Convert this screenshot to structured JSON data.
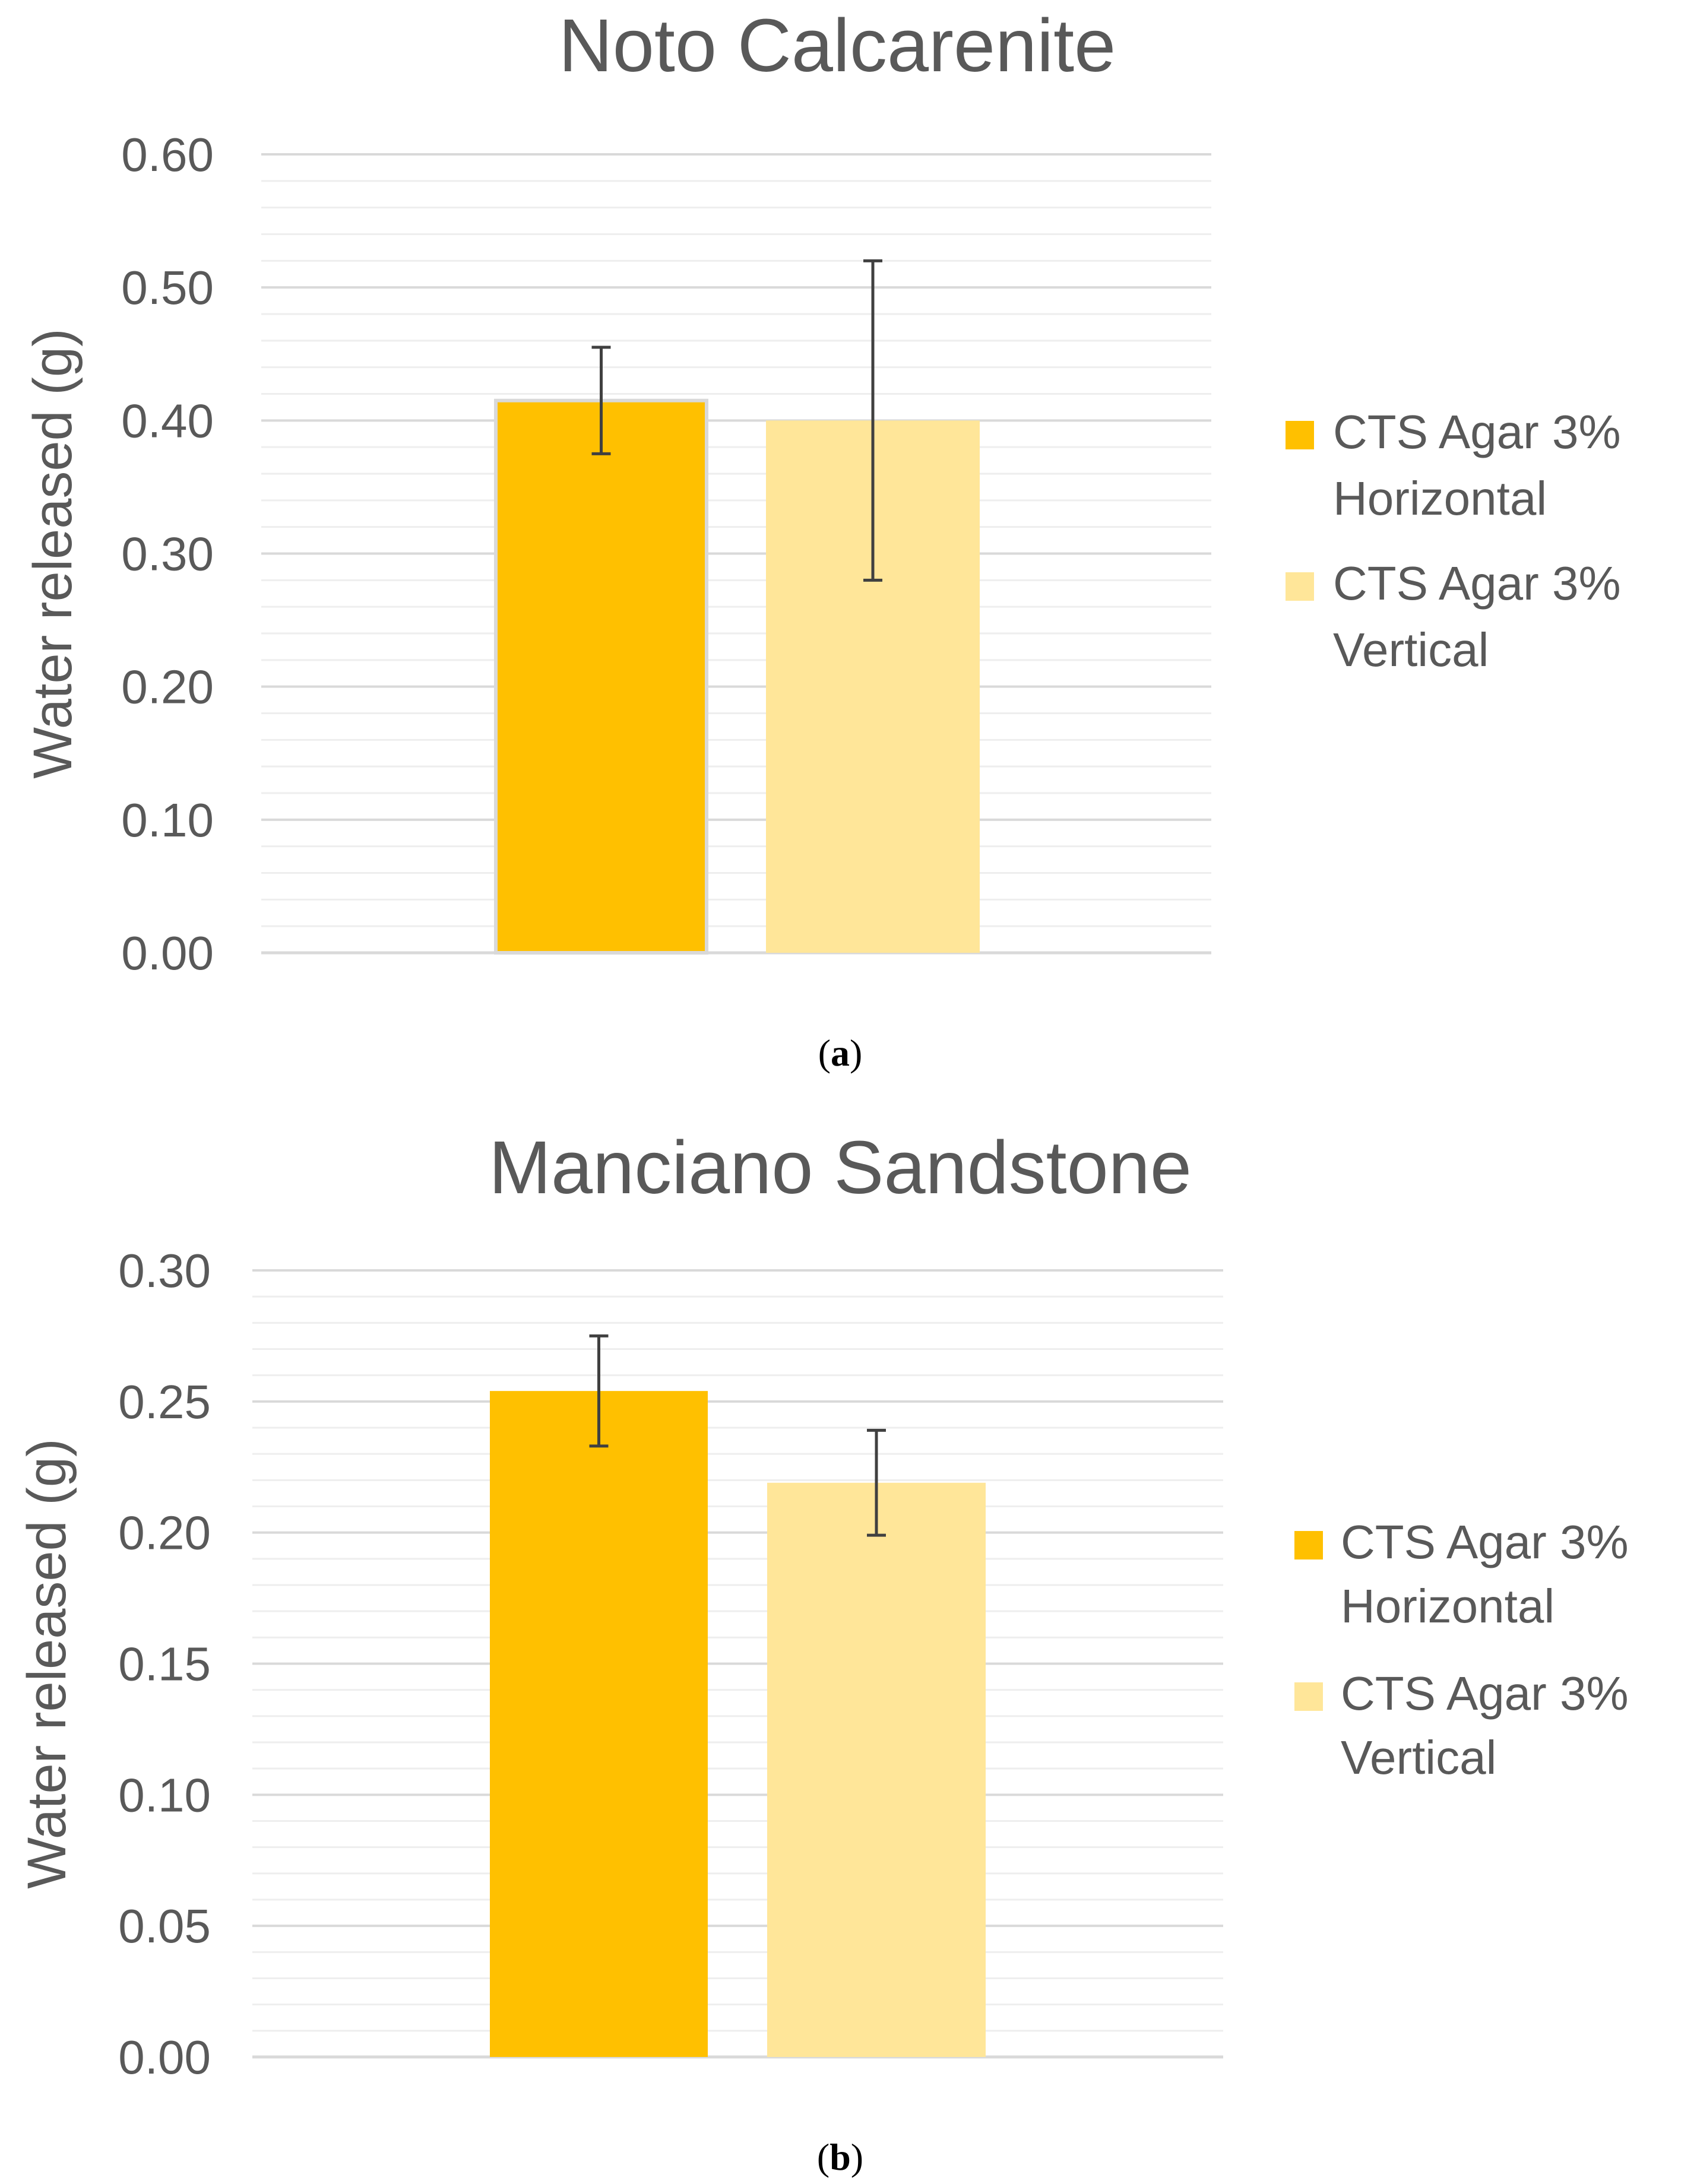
{
  "chart_data": [
    {
      "type": "bar",
      "panel": "a",
      "title": "Noto Calcarenite",
      "ylabel": "Water released (g)",
      "xlabel": "",
      "ylim": [
        0,
        0.6
      ],
      "major_step": 0.1,
      "minor_step": 0.02,
      "tick_labels": [
        "0.00",
        "0.10",
        "0.20",
        "0.30",
        "0.40",
        "0.50",
        "0.60"
      ],
      "series": [
        {
          "name": "CTS Agar 3% Horizontal",
          "legend_lines": [
            "CTS Agar 3%",
            "Horizontal"
          ],
          "value": 0.415,
          "error": 0.04,
          "color": "#ffc000",
          "outline": true
        },
        {
          "name": "CTS Agar 3% Vertical",
          "legend_lines": [
            "CTS Agar 3%",
            "Vertical"
          ],
          "value": 0.4,
          "error": 0.12,
          "color": "#ffe699",
          "outline": false
        }
      ],
      "caption_letter": "a"
    },
    {
      "type": "bar",
      "panel": "b",
      "title": "Manciano Sandstone",
      "ylabel": "Water released (g)",
      "xlabel": "",
      "ylim": [
        0,
        0.3
      ],
      "major_step": 0.05,
      "minor_step": 0.01,
      "tick_labels": [
        "0.00",
        "0.05",
        "0.10",
        "0.15",
        "0.20",
        "0.25",
        "0.30"
      ],
      "series": [
        {
          "name": "CTS Agar 3% Horizontal",
          "legend_lines": [
            "CTS Agar 3%",
            "Horizontal"
          ],
          "value": 0.254,
          "error": 0.021,
          "color": "#ffc000",
          "outline": false
        },
        {
          "name": "CTS Agar 3% Vertical",
          "legend_lines": [
            "CTS Agar 3%",
            "Vertical"
          ],
          "value": 0.219,
          "error": 0.02,
          "color": "#ffe699",
          "outline": false
        }
      ],
      "caption_letter": "b"
    }
  ]
}
